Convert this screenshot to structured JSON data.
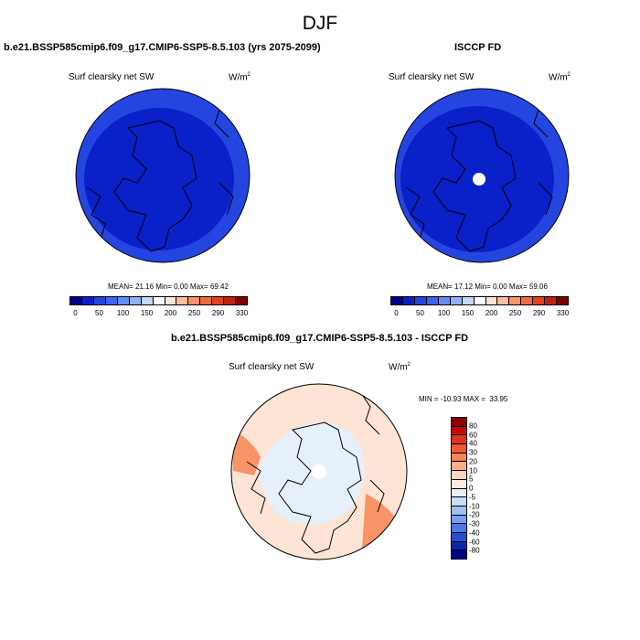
{
  "season": "DJF",
  "panels": {
    "model": {
      "title": "b.e21.BSSP585cmip6.f09_g17.CMIP6-SSP5-8.5.103 (yrs 2075-2099)",
      "variable": "Surf clearsky net SW",
      "units_base": "W/m",
      "units_exp": "2",
      "mean_label": "MEAN=",
      "mean": "21.16",
      "min_label": "Min=",
      "min": "0.00",
      "max_label": "Max=",
      "max": "69.42"
    },
    "obs": {
      "title": "ISCCP FD",
      "variable": "Surf clearsky net SW",
      "units_base": "W/m",
      "units_exp": "2",
      "mean_label": "MEAN=",
      "mean": "17.12",
      "min_label": "Min=",
      "min": "0.00",
      "max_label": "Max=",
      "max": "59.06"
    },
    "diff": {
      "title": "b.e21.BSSP585cmip6.f09_g17.CMIP6-SSP5-8.5.103 - ISCCP FD",
      "variable": "Surf clearsky net SW",
      "units_base": "W/m",
      "units_exp": "2",
      "minmax_text": "MIN = -10.93 MAX =  33.95"
    }
  },
  "abs_colorbar": {
    "colors": [
      "#00008b",
      "#0a20c8",
      "#2545e0",
      "#3a66f0",
      "#5e8ef5",
      "#8fb1f8",
      "#c5d8fb",
      "#ffffff",
      "#fde4d4",
      "#fbbd9b",
      "#f89468",
      "#f06a3c",
      "#e2421f",
      "#c0200e",
      "#7e0000"
    ],
    "labels": [
      "0",
      "50",
      "100",
      "150",
      "200",
      "250",
      "290",
      "330"
    ]
  },
  "diff_colorbar": {
    "colors": [
      "#8b0000",
      "#c40a0a",
      "#e2331c",
      "#f05a33",
      "#f78557",
      "#fbb08a",
      "#fdd5bc",
      "#fdebdd",
      "#e6f0fb",
      "#c7dcf6",
      "#9fbff2",
      "#779ff0",
      "#4a79ea",
      "#244ed6",
      "#0d26aa",
      "#00008b"
    ],
    "labels": [
      "80",
      "60",
      "40",
      "30",
      "20",
      "10",
      "5",
      "0",
      "-5",
      "-10",
      "-20",
      "-30",
      "-40",
      "-60",
      "-80"
    ]
  },
  "map_colors": {
    "abs_outer": "#2545e0",
    "abs_inner": "#0a20c8",
    "diff_base": "#fde4d4",
    "diff_warm": "#f89468",
    "diff_cool": "#e6f0fb",
    "missing": "#ffffff"
  }
}
